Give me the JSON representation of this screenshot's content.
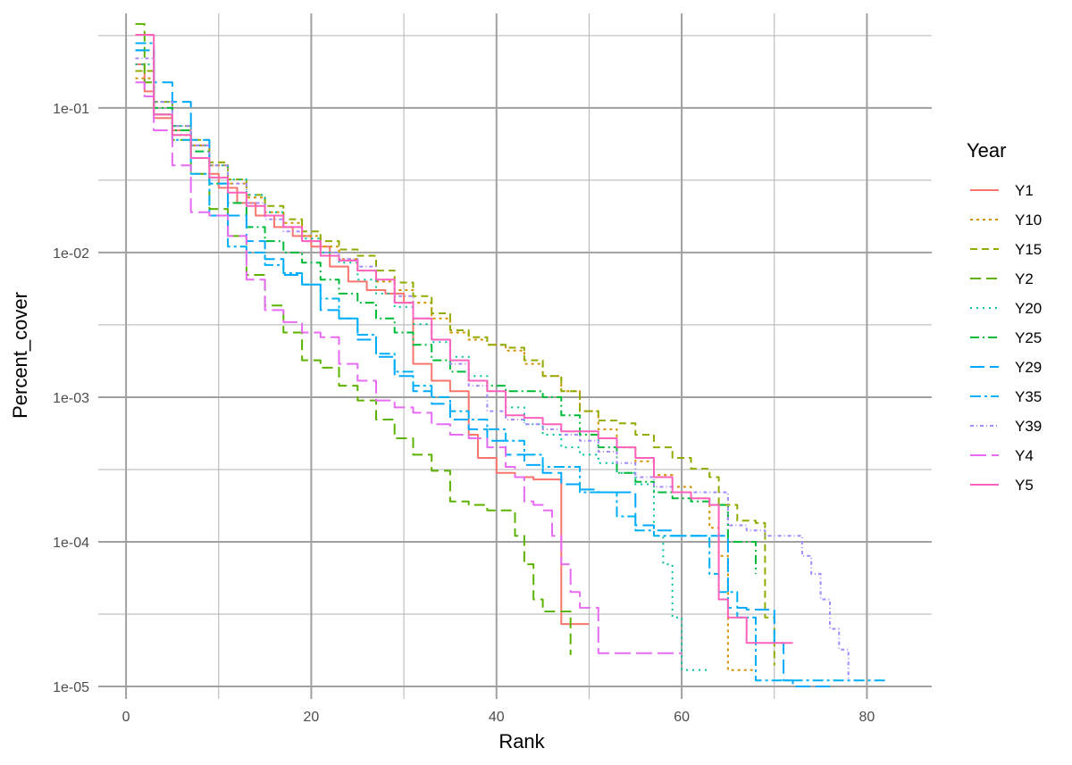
{
  "chart_data": {
    "type": "line",
    "xlabel": "Rank",
    "ylabel": "Percent_cover",
    "xlim": [
      -3,
      87
    ],
    "ylim": [
      8.2e-06,
      0.45
    ],
    "y_scale": "log10",
    "grid": true,
    "x_ticks": [
      0,
      20,
      40,
      60,
      80
    ],
    "x_tick_labels": [
      "0",
      "20",
      "40",
      "60",
      "80"
    ],
    "y_ticks": [
      1e-05,
      0.0001,
      0.001,
      0.01,
      0.1
    ],
    "y_tick_labels": [
      "1e-05",
      "1e-04",
      "1e-03",
      "1e-02",
      "1e-01"
    ],
    "legend": {
      "title": "Year",
      "position": "right"
    },
    "series": [
      {
        "name": "Y1",
        "color": "#F8766D",
        "dash": "",
        "step": true,
        "x": [
          1,
          2,
          3,
          5,
          7,
          9,
          10,
          12,
          14,
          16,
          18,
          20,
          22,
          24,
          26,
          28,
          30,
          31,
          33,
          35,
          37,
          38,
          40,
          42,
          44,
          46,
          47,
          48,
          49,
          50
        ],
        "y": [
          0.2,
          0.13,
          0.085,
          0.07,
          0.055,
          0.035,
          0.028,
          0.022,
          0.018,
          0.015,
          0.013,
          0.011,
          0.008,
          0.0063,
          0.0055,
          0.0052,
          0.0045,
          0.0017,
          0.0013,
          0.0011,
          0.00055,
          0.00038,
          0.0003,
          0.00028,
          0.00027,
          0.00027,
          2.7e-05,
          2.7e-05,
          2.7e-05,
          2.7e-05
        ]
      },
      {
        "name": "Y10",
        "color": "#D39200",
        "dash": "3,4",
        "step": true,
        "x": [
          1,
          3,
          5,
          7,
          9,
          11,
          13,
          15,
          17,
          19,
          21,
          23,
          25,
          27,
          29,
          31,
          33,
          35,
          37,
          39,
          41,
          43,
          45,
          47,
          49,
          51,
          53,
          55,
          57,
          59,
          61,
          63,
          64,
          65,
          66,
          68
        ],
        "y": [
          0.16,
          0.09,
          0.065,
          0.055,
          0.04,
          0.03,
          0.024,
          0.019,
          0.016,
          0.013,
          0.011,
          0.009,
          0.0075,
          0.0063,
          0.0055,
          0.0045,
          0.0035,
          0.0028,
          0.0025,
          0.0023,
          0.0021,
          0.0017,
          0.0014,
          0.0011,
          0.0008,
          0.0006,
          0.00045,
          0.00036,
          0.00029,
          0.00024,
          0.0002,
          0.000125,
          8e-05,
          1.3e-05,
          1.3e-05,
          1.3e-05
        ]
      },
      {
        "name": "Y15",
        "color": "#93AA00",
        "dash": "8,5",
        "step": true,
        "x": [
          1,
          3,
          5,
          7,
          9,
          11,
          13,
          15,
          17,
          19,
          21,
          23,
          25,
          27,
          29,
          31,
          33,
          35,
          37,
          39,
          41,
          43,
          45,
          47,
          49,
          51,
          53,
          55,
          57,
          59,
          61,
          63,
          64,
          66,
          68,
          69,
          70
        ],
        "y": [
          0.18,
          0.11,
          0.075,
          0.06,
          0.042,
          0.032,
          0.025,
          0.021,
          0.017,
          0.014,
          0.012,
          0.0105,
          0.0095,
          0.0075,
          0.0062,
          0.005,
          0.0038,
          0.0029,
          0.0026,
          0.0023,
          0.0022,
          0.0018,
          0.0014,
          0.0011,
          0.0008,
          0.00069,
          0.00066,
          0.00055,
          0.00045,
          0.00038,
          0.00032,
          0.00028,
          0.00018,
          0.00014,
          0.000135,
          3e-05,
          1.4e-05
        ]
      },
      {
        "name": "Y2",
        "color": "#5BB300",
        "dash": "12,6",
        "step": true,
        "x": [
          1,
          2,
          3,
          5,
          7,
          9,
          11,
          13,
          15,
          17,
          19,
          21,
          23,
          25,
          27,
          29,
          31,
          33,
          35,
          37,
          39,
          41,
          42,
          43,
          44,
          45,
          46,
          47,
          48
        ],
        "y": [
          0.38,
          0.15,
          0.09,
          0.06,
          0.035,
          0.02,
          0.013,
          0.007,
          0.0043,
          0.0028,
          0.0018,
          0.0016,
          0.0012,
          0.00095,
          0.0007,
          0.00052,
          0.0004,
          0.00031,
          0.00019,
          0.00018,
          0.000165,
          0.000165,
          0.00011,
          7e-05,
          4e-05,
          3.3e-05,
          3.3e-05,
          3.3e-05,
          1.65e-05
        ]
      },
      {
        "name": "Y20",
        "color": "#00C19F",
        "dash": "2,5",
        "step": true,
        "x": [
          1,
          3,
          5,
          7,
          9,
          11,
          13,
          15,
          17,
          19,
          21,
          23,
          25,
          27,
          29,
          31,
          33,
          35,
          37,
          39,
          41,
          43,
          45,
          47,
          49,
          51,
          53,
          55,
          57,
          58,
          59,
          60,
          61,
          62,
          63
        ],
        "y": [
          0.2,
          0.11,
          0.075,
          0.055,
          0.04,
          0.032,
          0.025,
          0.019,
          0.015,
          0.0125,
          0.01,
          0.0085,
          0.0065,
          0.0052,
          0.0042,
          0.0032,
          0.0024,
          0.0019,
          0.0014,
          0.0011,
          0.00085,
          0.00065,
          0.00055,
          0.00045,
          0.0004,
          0.00035,
          0.0003,
          0.00025,
          0.00011,
          7e-05,
          3e-05,
          1.3e-05,
          1.3e-05,
          1.3e-05,
          1.3e-05
        ]
      },
      {
        "name": "Y25",
        "color": "#00BA38",
        "dash": "10,4,2,4",
        "step": true,
        "x": [
          1,
          3,
          5,
          7,
          9,
          11,
          13,
          15,
          17,
          19,
          21,
          23,
          25,
          27,
          29,
          31,
          33,
          35,
          37,
          39,
          41,
          43,
          45,
          47,
          49,
          51,
          53,
          55,
          57,
          59,
          61,
          63,
          65,
          67,
          68
        ],
        "y": [
          0.25,
          0.1,
          0.07,
          0.05,
          0.03,
          0.022,
          0.015,
          0.012,
          0.01,
          0.0085,
          0.0065,
          0.0052,
          0.0045,
          0.0035,
          0.0028,
          0.0023,
          0.0018,
          0.0015,
          0.0013,
          0.0012,
          0.0011,
          0.0011,
          0.001,
          0.00075,
          0.00055,
          0.00045,
          0.0003,
          0.00026,
          0.00022,
          0.0002,
          0.00019,
          0.00018,
          0.0001,
          0.0001,
          6e-05
        ]
      },
      {
        "name": "Y29",
        "color": "#00A9FF",
        "dash": "16,6",
        "step": true,
        "x": [
          1,
          3,
          5,
          7,
          9,
          11,
          13,
          15,
          17,
          19,
          21,
          23,
          25,
          27,
          29,
          31,
          33,
          35,
          37,
          39,
          41,
          43,
          45,
          47,
          49,
          51,
          53,
          55,
          57,
          59,
          61,
          63,
          65,
          67,
          68,
          69,
          70,
          71,
          72,
          74,
          76
        ],
        "y": [
          0.25,
          0.15,
          0.11,
          0.06,
          0.03,
          0.018,
          0.012,
          0.009,
          0.007,
          0.006,
          0.004,
          0.0035,
          0.0025,
          0.0019,
          0.0014,
          0.0011,
          0.0009,
          0.0007,
          0.0006,
          0.0005,
          0.0004,
          0.00034,
          0.0003,
          0.00025,
          0.00023,
          0.00022,
          0.00022,
          0.00013,
          0.00012,
          0.00011,
          0.00011,
          0.00011,
          3.5e-05,
          3.4e-05,
          3.4e-05,
          3.4e-05,
          2e-05,
          1.1e-05,
          1e-05,
          1e-05,
          1e-05
        ]
      },
      {
        "name": "Y35",
        "color": "#00B0F6",
        "dash": "12,4,3,4",
        "step": true,
        "x": [
          1,
          3,
          5,
          7,
          9,
          11,
          13,
          15,
          17,
          19,
          21,
          23,
          25,
          27,
          29,
          31,
          33,
          35,
          37,
          39,
          41,
          43,
          45,
          47,
          49,
          51,
          53,
          55,
          57,
          59,
          61,
          63,
          64,
          66,
          68,
          70,
          72,
          74,
          76,
          78,
          80,
          82
        ],
        "y": [
          0.28,
          0.09,
          0.06,
          0.035,
          0.018,
          0.011,
          0.01,
          0.0082,
          0.0072,
          0.006,
          0.0048,
          0.0035,
          0.0027,
          0.002,
          0.0015,
          0.0012,
          0.001,
          0.0008,
          0.0007,
          0.0006,
          0.0005,
          0.0004,
          0.00033,
          0.00033,
          0.00022,
          0.00022,
          0.00015,
          0.00012,
          0.00011,
          0.00011,
          0.00011,
          6e-05,
          4.5e-05,
          3e-05,
          1.1e-05,
          1.1e-05,
          1.1e-05,
          1.1e-05,
          1.1e-05,
          1.1e-05,
          1.1e-05,
          1.1e-05
        ]
      },
      {
        "name": "Y39",
        "color": "#A58AFF",
        "dash": "4,3,1,3",
        "step": true,
        "x": [
          1,
          3,
          5,
          7,
          9,
          11,
          13,
          15,
          17,
          19,
          21,
          23,
          25,
          27,
          29,
          31,
          33,
          35,
          37,
          39,
          41,
          43,
          45,
          47,
          49,
          51,
          53,
          55,
          57,
          59,
          61,
          63,
          65,
          67,
          69,
          71,
          72,
          73,
          74,
          75,
          76,
          77,
          78
        ],
        "y": [
          0.22,
          0.11,
          0.075,
          0.055,
          0.04,
          0.03,
          0.022,
          0.017,
          0.014,
          0.012,
          0.01,
          0.009,
          0.008,
          0.0065,
          0.005,
          0.0035,
          0.0025,
          0.0017,
          0.0012,
          0.0008,
          0.0007,
          0.00065,
          0.0006,
          0.00055,
          0.0005,
          0.00042,
          0.00035,
          0.00028,
          0.00024,
          0.00022,
          0.00022,
          0.00022,
          0.00013,
          0.00012,
          0.00011,
          0.00011,
          0.00011,
          8e-05,
          6e-05,
          4e-05,
          2.5e-05,
          1.8e-05,
          1.1e-05
        ]
      },
      {
        "name": "Y4",
        "color": "#E76BF3",
        "dash": "18,6",
        "step": true,
        "x": [
          1,
          2,
          3,
          5,
          7,
          9,
          11,
          13,
          15,
          17,
          19,
          21,
          23,
          25,
          27,
          29,
          31,
          33,
          35,
          37,
          39,
          41,
          42,
          43,
          44,
          45,
          46,
          47,
          48,
          49,
          50,
          51,
          52,
          54,
          56,
          58,
          60
        ],
        "y": [
          0.15,
          0.12,
          0.07,
          0.04,
          0.019,
          0.018,
          0.013,
          0.0065,
          0.004,
          0.0033,
          0.0028,
          0.0026,
          0.0017,
          0.0013,
          0.00095,
          0.00085,
          0.00078,
          0.00065,
          0.00055,
          0.00052,
          0.00045,
          0.00033,
          0.00028,
          0.00019,
          0.00018,
          0.000165,
          0.00011,
          7e-05,
          4.5e-05,
          3.5e-05,
          3.5e-05,
          1.7e-05,
          1.7e-05,
          1.7e-05,
          1.7e-05,
          1.7e-05,
          1.7e-05
        ]
      },
      {
        "name": "Y5",
        "color": "#FF62BC",
        "dash": "",
        "step": true,
        "x": [
          1,
          2,
          3,
          5,
          7,
          9,
          11,
          13,
          15,
          17,
          19,
          21,
          23,
          25,
          27,
          29,
          31,
          33,
          35,
          37,
          39,
          41,
          43,
          45,
          47,
          49,
          51,
          53,
          55,
          57,
          59,
          61,
          63,
          64,
          65,
          66,
          67,
          68,
          70,
          72
        ],
        "y": [
          0.32,
          0.32,
          0.09,
          0.065,
          0.045,
          0.033,
          0.026,
          0.021,
          0.018,
          0.015,
          0.012,
          0.0095,
          0.0088,
          0.0075,
          0.0065,
          0.0045,
          0.0035,
          0.0025,
          0.0018,
          0.0013,
          0.0011,
          0.00075,
          0.00072,
          0.00065,
          0.00058,
          0.00058,
          0.00052,
          0.00045,
          0.00038,
          0.00028,
          0.00022,
          0.0002,
          0.00018,
          4e-05,
          3e-05,
          3e-05,
          2e-05,
          2e-05,
          2e-05,
          2e-05
        ]
      }
    ]
  }
}
